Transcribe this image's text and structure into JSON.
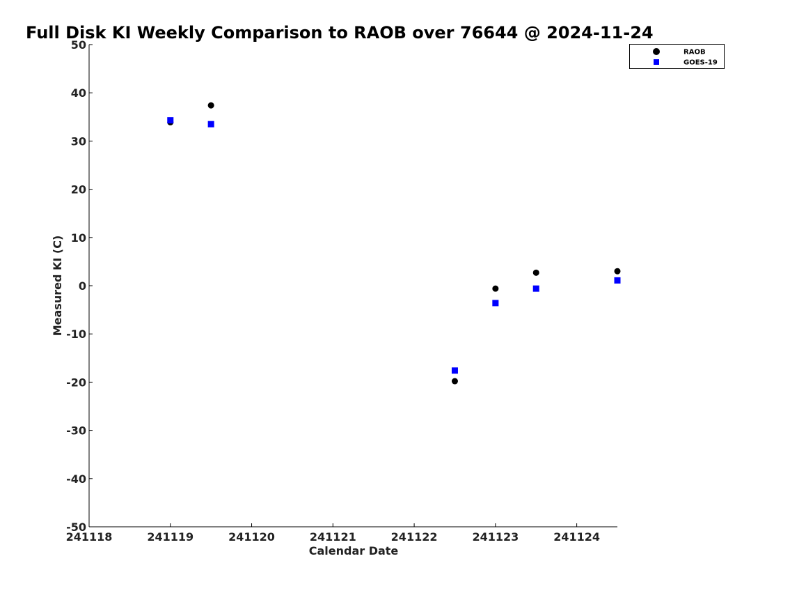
{
  "chart_data": {
    "type": "scatter",
    "title": "Full Disk KI Weekly Comparison to RAOB over 76644 @ 2024-11-24",
    "xlabel": "Calendar Date",
    "ylabel": "Measured KI (C)",
    "xlim": [
      "241118",
      "241124.5"
    ],
    "ylim": [
      -50,
      50
    ],
    "x_ticks": [
      "241118",
      "241119",
      "241120",
      "241121",
      "241122",
      "241123",
      "241124"
    ],
    "y_ticks": [
      50,
      40,
      30,
      20,
      10,
      0,
      -10,
      -20,
      -30,
      -40,
      -50
    ],
    "grid": false,
    "legend": {
      "position": "top-right",
      "entries": [
        "RAOB",
        "GOES-19"
      ]
    },
    "series": [
      {
        "name": "RAOB",
        "marker": "circle",
        "color": "#000000",
        "x": [
          "241119.0",
          "241119.5",
          "241122.5",
          "241123.0",
          "241123.5",
          "241124.5"
        ],
        "y": [
          33.9,
          37.4,
          -19.8,
          -0.6,
          2.7,
          3.0
        ]
      },
      {
        "name": "GOES-19",
        "marker": "square",
        "color": "#0000ff",
        "x": [
          "241119.0",
          "241119.5",
          "241122.5",
          "241123.0",
          "241123.5",
          "241124.5"
        ],
        "y": [
          34.3,
          33.5,
          -17.6,
          -3.6,
          -0.6,
          1.1
        ]
      }
    ]
  }
}
